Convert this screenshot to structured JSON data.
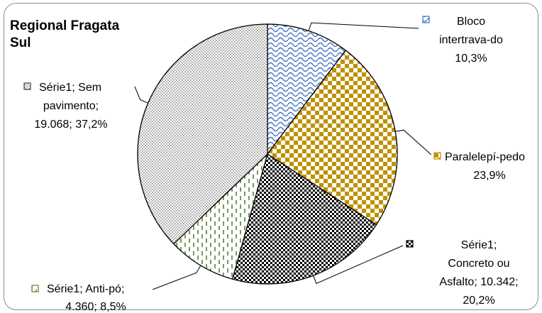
{
  "chart_data": {
    "type": "pie",
    "title_lines": [
      "Regional Fragata",
      "Sul"
    ],
    "slices": [
      {
        "category": "Bloco intertrava-do",
        "percent": 10.3,
        "color": "#4472c4",
        "pattern": "wave",
        "label_lines": [
          "Bloco",
          "intertrava-do",
          "10,3%"
        ]
      },
      {
        "category": "Paralelepí-pedo",
        "percent": 23.9,
        "color": "#bf9000",
        "pattern": "checker",
        "label_lines": [
          "Paralelepí-pedo",
          "23,9%"
        ]
      },
      {
        "series": "Série1",
        "category": "Concreto ou Asfalto",
        "value": 10342,
        "percent": 20.2,
        "color": "#000000",
        "pattern": "dots-large",
        "label_lines": [
          "Série1;",
          "Concreto ou",
          "Asfalto; 10.342;",
          "20,2%"
        ]
      },
      {
        "series": "Série1",
        "category": "Anti-pó",
        "value": 4360,
        "percent": 8.5,
        "color": "#548235",
        "pattern": "dashed-vertical",
        "label_lines": [
          "Série1; Anti-pó;",
          "4.360; 8,5%"
        ]
      },
      {
        "series": "Série1",
        "category": "Sem pavimento",
        "value": 19068,
        "percent": 37.2,
        "color": "#404040",
        "pattern": "dots-fine",
        "label_lines": [
          "Série1; Sem",
          "pavimento;",
          "19.068; 37,2%"
        ]
      }
    ]
  }
}
